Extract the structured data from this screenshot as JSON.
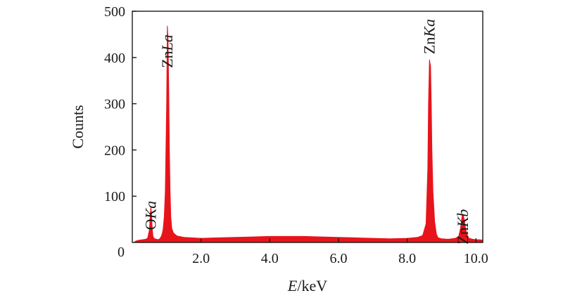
{
  "chart_data": {
    "type": "area",
    "title": "",
    "xlabel": {
      "italic": "E",
      "plain": "/keV"
    },
    "ylabel": "Counts",
    "xlim": [
      0,
      10.2
    ],
    "ylim": [
      0,
      500
    ],
    "x_ticks": [
      {
        "value": 2.0,
        "label": "2.0"
      },
      {
        "value": 4.0,
        "label": "4.0"
      },
      {
        "value": 6.0,
        "label": "6.0"
      },
      {
        "value": 8.0,
        "label": "8.0"
      },
      {
        "value": 10.0,
        "label": "10.0"
      }
    ],
    "y_ticks": [
      {
        "value": 0,
        "label": "0"
      },
      {
        "value": 100,
        "label": "100"
      },
      {
        "value": 200,
        "label": "200"
      },
      {
        "value": 300,
        "label": "300"
      },
      {
        "value": 400,
        "label": "400"
      },
      {
        "value": 500,
        "label": "500"
      }
    ],
    "grid": false,
    "series_color": "#e8141b",
    "spectrum": {
      "x": [
        0.05,
        0.1,
        0.2,
        0.3,
        0.4,
        0.45,
        0.5,
        0.52,
        0.54,
        0.56,
        0.58,
        0.6,
        0.62,
        0.65,
        0.7,
        0.75,
        0.8,
        0.85,
        0.88,
        0.9,
        0.93,
        0.96,
        0.98,
        1.0,
        1.02,
        1.04,
        1.06,
        1.08,
        1.1,
        1.12,
        1.15,
        1.2,
        1.3,
        1.5,
        2.0,
        2.5,
        3.0,
        3.5,
        4.0,
        4.5,
        5.0,
        5.5,
        6.0,
        6.5,
        7.0,
        7.5,
        8.0,
        8.3,
        8.45,
        8.55,
        8.6,
        8.62,
        8.65,
        8.68,
        8.7,
        8.72,
        8.75,
        8.8,
        8.85,
        8.9,
        9.0,
        9.2,
        9.4,
        9.5,
        9.55,
        9.6,
        9.63,
        9.66,
        9.7,
        9.75,
        9.8,
        9.9,
        10.0,
        10.1,
        10.2
      ],
      "y": [
        0,
        3,
        5,
        6,
        7,
        10,
        28,
        55,
        78,
        60,
        30,
        14,
        10,
        8,
        7,
        6,
        8,
        14,
        22,
        30,
        55,
        110,
        200,
        300,
        468,
        440,
        330,
        200,
        110,
        55,
        30,
        20,
        14,
        11,
        9,
        10,
        11,
        12,
        13,
        13,
        13,
        12,
        11,
        10,
        9,
        8,
        9,
        11,
        15,
        40,
        160,
        300,
        395,
        380,
        300,
        200,
        110,
        45,
        18,
        10,
        8,
        7,
        9,
        13,
        30,
        58,
        60,
        50,
        30,
        15,
        9,
        7,
        6,
        6,
        5
      ]
    },
    "peaks": [
      {
        "element": "O",
        "line": "Ka",
        "x": 0.54,
        "counts": 78
      },
      {
        "element": "Zn",
        "line": "La",
        "x": 1.02,
        "counts": 468
      },
      {
        "element": "Zn",
        "line": "Ka",
        "x": 8.65,
        "counts": 395
      },
      {
        "element": "Zn",
        "line": "Kb",
        "x": 9.63,
        "counts": 60
      }
    ]
  }
}
